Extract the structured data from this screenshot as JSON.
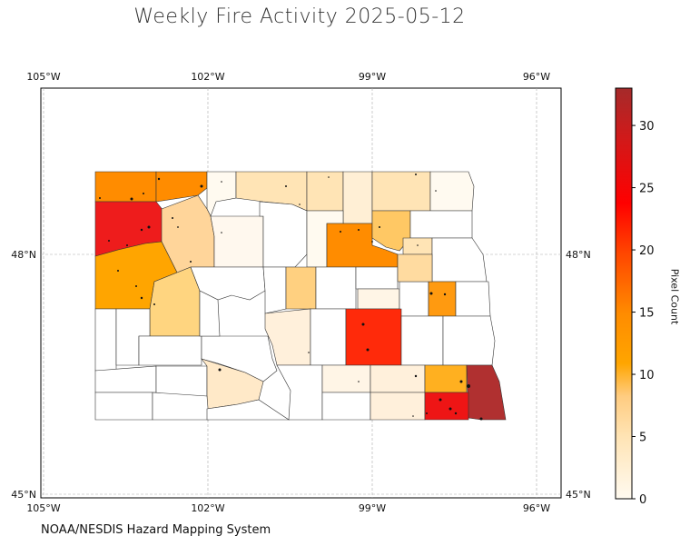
{
  "title": "Weekly Fire Activity 2025-05-12",
  "credit": "NOAA/NESDIS Hazard Mapping System",
  "colorbar": {
    "label": "Pixel Count",
    "min": 0,
    "max": 33,
    "ticks": [
      "0",
      "5",
      "10",
      "15",
      "20",
      "25",
      "30"
    ],
    "colors": [
      "#fffaf0",
      "#ffe4b5",
      "#ffcc80",
      "#ffa500",
      "#ff8c00",
      "#ff4500",
      "#ff0000",
      "#b22222"
    ]
  },
  "axes": {
    "lon_ticks": [
      "105°W",
      "102°W",
      "99°W",
      "96°W"
    ],
    "lat_ticks": [
      "48°N",
      "45°N"
    ]
  }
}
